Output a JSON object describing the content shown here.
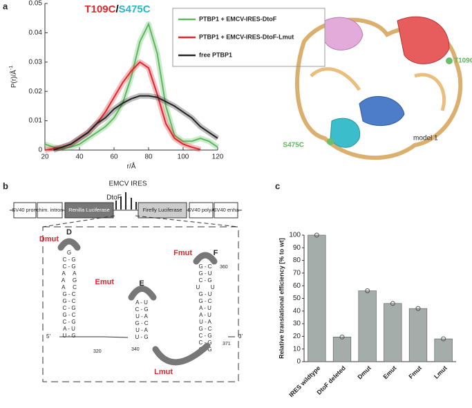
{
  "chart_data": [
    {
      "type": "line",
      "title": [
        "T109C",
        "/",
        "S475C"
      ],
      "title_colors": [
        "#e0262b",
        "#000000",
        "#27b6c6"
      ],
      "xlabel": "r/Å",
      "ylabel": "P(r)/Å",
      "ylabel_sup": "-1",
      "x": [
        20,
        25,
        30,
        35,
        40,
        45,
        50,
        55,
        60,
        65,
        70,
        75,
        80,
        85,
        90,
        95,
        100,
        105,
        110,
        115,
        120
      ],
      "series": [
        {
          "name": "PTBP1 + EMCV-IRES-DtoF",
          "color": "#5cb85c",
          "values": [
            0.002,
            0.001,
            0.0005,
            0.001,
            0.002,
            0.004,
            0.006,
            0.008,
            0.011,
            0.016,
            0.025,
            0.037,
            0.043,
            0.033,
            0.015,
            0.005,
            0.003,
            0.003,
            0.004,
            0.003,
            0.001
          ]
        },
        {
          "name": "PTBP1 +  EMCV-IRES-DtoF-Lmut",
          "color": "#e0262b",
          "values": [
            0,
            0.0005,
            0.001,
            0.002,
            0.004,
            0.006,
            0.009,
            0.013,
            0.018,
            0.023,
            0.027,
            0.03,
            0.028,
            0.019,
            0.009,
            0.004,
            0.002,
            0.001,
            0.0002,
            null,
            null
          ]
        },
        {
          "name": "free PTBP1",
          "color": "#222222",
          "values": [
            null,
            0,
            0.001,
            0.002,
            0.004,
            0.006,
            0.009,
            0.011,
            0.014,
            0.016,
            0.0175,
            0.0185,
            0.0185,
            0.018,
            0.0165,
            0.015,
            0.013,
            0.011,
            0.008,
            0.006,
            0.004
          ]
        }
      ],
      "xlim": [
        20,
        120
      ],
      "xticks": [
        20,
        40,
        60,
        80,
        100,
        120
      ],
      "ylim": [
        0,
        0.05
      ],
      "yticks": [
        0,
        0.01,
        0.02,
        0.03,
        0.04,
        0.05
      ]
    },
    {
      "type": "bar",
      "ylabel": "Relative translational efficiency [% to wt]",
      "categories": [
        "IRES wildtype",
        "DtoF deleted",
        "Dmut",
        "Emut",
        "Fmut",
        "Lmut"
      ],
      "values": [
        100,
        19.5,
        56,
        46,
        42,
        18
      ],
      "color": "#a5adab",
      "ylim": [
        0,
        100
      ],
      "yticks": [
        0,
        10,
        20,
        30,
        40,
        50,
        60,
        70,
        80,
        90,
        100
      ]
    }
  ],
  "diagram": {
    "panel_labels": [
      "a",
      "b",
      "c"
    ],
    "construct": [
      "SV40 prom",
      "chim. intron",
      "Renilla Luciferase",
      "Firefly Luciferase",
      "SV40 polyA",
      "SV40 enha"
    ],
    "ires_label": "EMCV IRES",
    "dtof": "DtoF",
    "mutants": [
      "Dmut",
      "Emut",
      "Fmut",
      "Lmut"
    ],
    "domains": [
      "D",
      "E",
      "F"
    ],
    "numbers": [
      "320",
      "340",
      "360",
      "371"
    ],
    "ends": [
      "5'",
      "3'"
    ],
    "stems": [
      [
        "G",
        "C - G",
        "C - G",
        "A     A",
        "A     G",
        "A     C",
        "G - C",
        "G - C",
        "C - G",
        "G - C",
        "C - G",
        "A - U",
        "U - G"
      ],
      [
        "A - U",
        "C - G",
        "U - A",
        "G - C",
        "U - A",
        "U - G"
      ],
      [
        "G - C",
        "G - U",
        "C - G",
        "U       U",
        "G - U",
        "G - C",
        "A - U",
        "A - U",
        "U - A",
        "G - C",
        "C - G",
        "C - G",
        "C - G"
      ]
    ]
  },
  "protein": {
    "labels": [
      "T109C",
      "S475C",
      "model 1"
    ]
  }
}
